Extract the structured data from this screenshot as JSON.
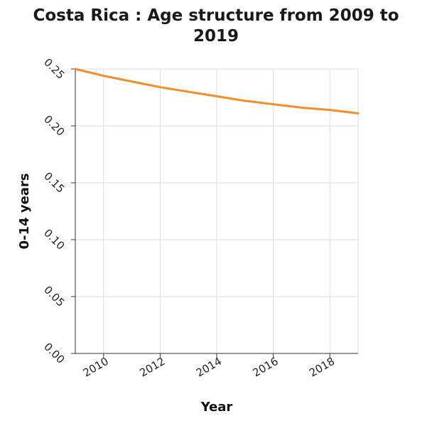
{
  "chart_data": {
    "type": "line",
    "title_line1": "Costa Rica : Age structure from 2009 to",
    "title_line2": "2019",
    "xlabel": "Year",
    "ylabel": "0-14 years",
    "xlim": [
      2009,
      2019
    ],
    "ylim": [
      0,
      0.25
    ],
    "x_ticks": [
      2010,
      2012,
      2014,
      2016,
      2018
    ],
    "x_tick_labels": [
      "2010",
      "2012",
      "2014",
      "2016",
      "2018"
    ],
    "y_ticks": [
      0,
      0.05,
      0.1,
      0.15,
      0.2,
      0.25
    ],
    "y_tick_labels": [
      "0.00",
      "0.05",
      "0.10",
      "0.15",
      "0.20",
      "0.25"
    ],
    "grid": true,
    "series": [
      {
        "color": "#f28e2b",
        "x": [
          2009,
          2010,
          2011,
          2012,
          2013,
          2014,
          2015,
          2016,
          2017,
          2018,
          2019
        ],
        "y": [
          0.25,
          0.244,
          0.239,
          0.234,
          0.23,
          0.226,
          0.222,
          0.219,
          0.216,
          0.214,
          0.211
        ]
      }
    ]
  }
}
